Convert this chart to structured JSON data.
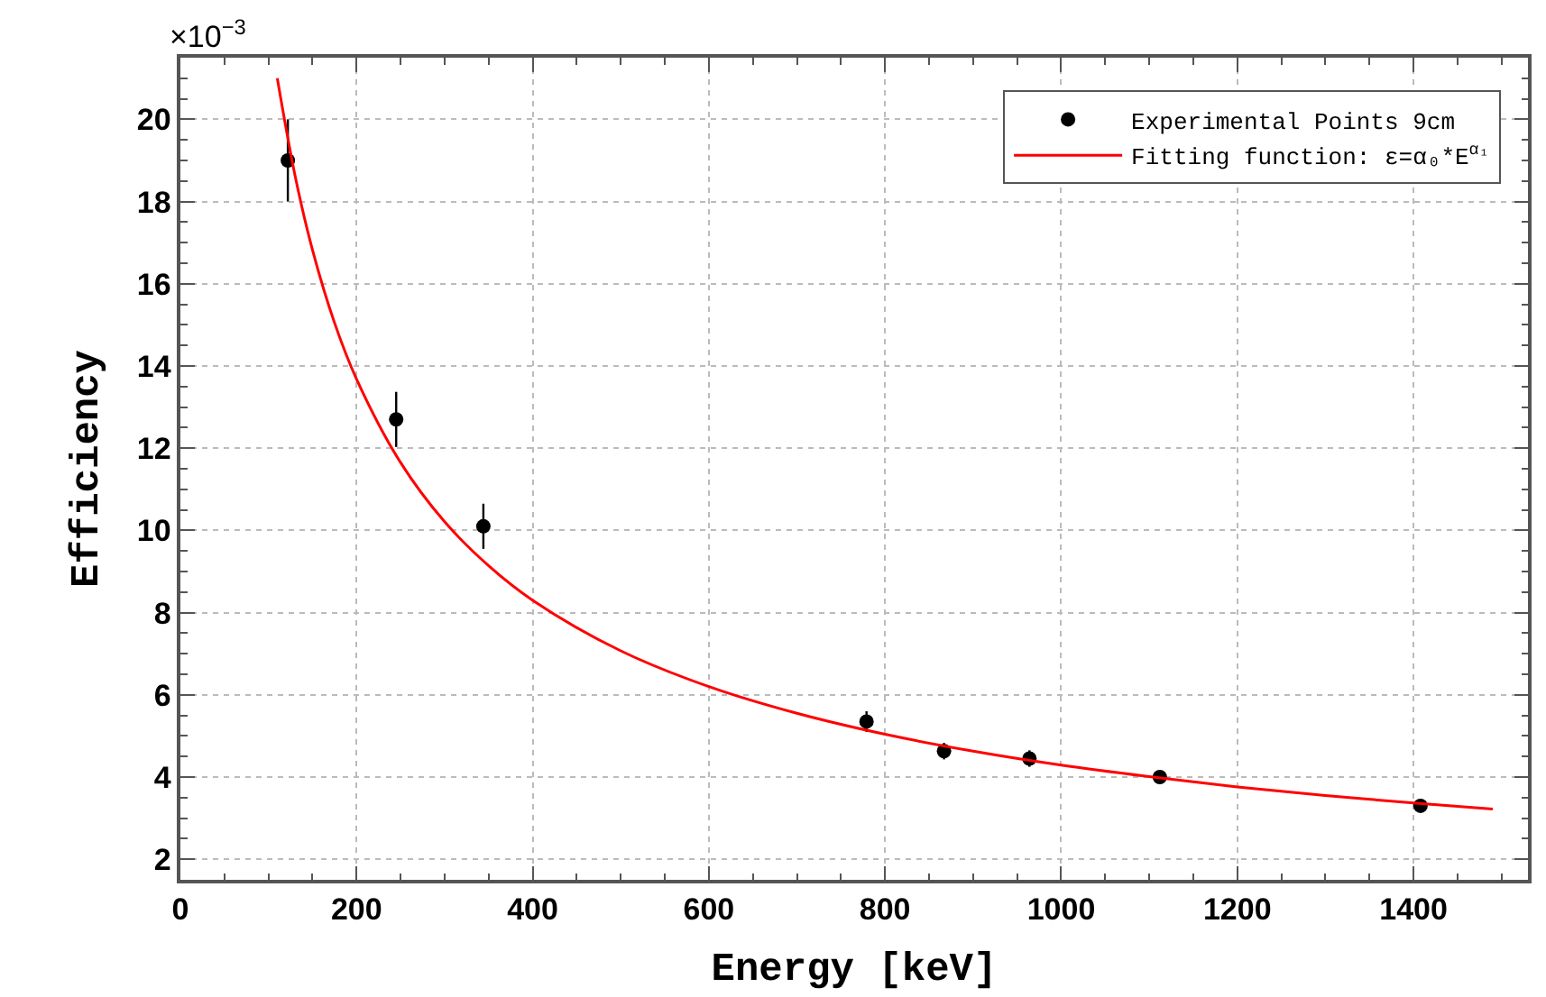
{
  "chart_data": {
    "type": "scatter",
    "xlabel": "Energy [keV]",
    "ylabel": "Efficiency",
    "xlim": [
      0,
      1530
    ],
    "ylim": [
      1.5,
      21.5
    ],
    "xticks": [
      0,
      200,
      400,
      600,
      800,
      1000,
      1200,
      1400
    ],
    "yticks": [
      2,
      4,
      6,
      8,
      10,
      12,
      14,
      16,
      18,
      20
    ],
    "grid": true,
    "legend": "top right",
    "annotations": [
      "×10$^{−3}$"
    ],
    "series": [
      {
        "name": "Experimental Points 9cm",
        "color": "#000000",
        "marker": "circle",
        "x": [
          122,
          245,
          344,
          779,
          867,
          964,
          1112,
          1408
        ],
        "values": [
          19.0,
          12.7,
          10.1,
          5.35,
          4.63,
          4.45,
          4.0,
          3.3
        ],
        "errors": [
          1.0,
          0.67,
          0.55,
          0.25,
          0.2,
          0.2,
          0.15,
          0.12
        ]
      },
      {
        "name": "Fitting function: ε=α₀*E$^{α₁}$",
        "color": "#ff0000",
        "type": "line",
        "x": [
          110,
          130,
          150,
          175,
          200,
          250,
          300,
          350,
          400,
          500,
          600,
          700,
          800,
          900,
          1000,
          1100,
          1200,
          1300,
          1400,
          1490
        ],
        "values": [
          21.0,
          18.65,
          16.82,
          15.05,
          13.68,
          11.65,
          10.21,
          9.14,
          8.3,
          7.07,
          6.2,
          5.55,
          5.04,
          4.63,
          4.29,
          4.01,
          3.76,
          3.55,
          3.37,
          3.22
        ]
      }
    ]
  }
}
